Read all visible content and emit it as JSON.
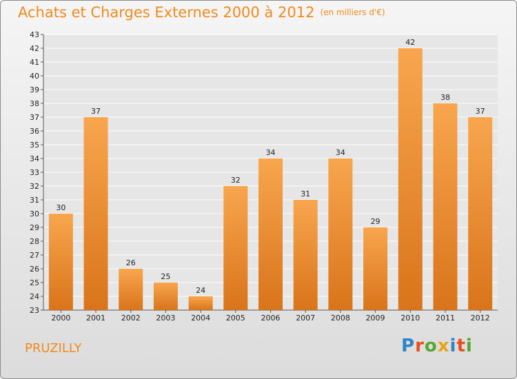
{
  "header": {
    "title": "Achats et Charges Externes 2000 à 2012",
    "unit": "(en milliers d'€)"
  },
  "footer": {
    "commune": "PRUZILLY",
    "logo": "Proxiti"
  },
  "colors": {
    "bar_top": "#f8a64e",
    "bar_bottom": "#d9741a",
    "title": "#f08a1c",
    "grid": "#ffffff"
  },
  "chart_data": {
    "type": "bar",
    "title": "Achats et Charges Externes 2000 à 2012",
    "subtitle": "(en milliers d'€)",
    "xlabel": "",
    "ylabel": "",
    "categories": [
      "2000",
      "2001",
      "2002",
      "2003",
      "2004",
      "2005",
      "2006",
      "2007",
      "2008",
      "2009",
      "2010",
      "2011",
      "2012"
    ],
    "values": [
      30,
      37,
      26,
      25,
      24,
      32,
      34,
      31,
      34,
      29,
      42,
      38,
      37
    ],
    "ylim": [
      23,
      43
    ],
    "yticks": [
      23,
      24,
      25,
      26,
      27,
      28,
      29,
      30,
      31,
      32,
      33,
      34,
      35,
      36,
      37,
      38,
      39,
      40,
      41,
      42,
      43
    ],
    "grid": true,
    "legend": "none"
  }
}
